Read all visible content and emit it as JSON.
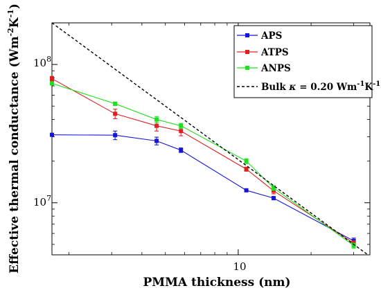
{
  "chart_data": {
    "type": "line",
    "x_scale": "log",
    "y_scale": "log",
    "xlabel": "PMMA thickness (nm)",
    "ylabel_parts": [
      "Effective thermal conductance (Wm",
      "-2",
      "K",
      "-1",
      ")"
    ],
    "xlim": [
      1.7,
      35
    ],
    "ylim": [
      4200000,
      200000000
    ],
    "x_ticks": [
      {
        "value": 10,
        "label": "10"
      }
    ],
    "y_ticks": [
      {
        "value": 10000000,
        "base": "10",
        "exp": "7"
      },
      {
        "value": 100000000,
        "base": "10",
        "exp": "8"
      }
    ],
    "grid": false,
    "legend_position": "top-right",
    "colors": {
      "APS": "#1515d6",
      "ATPS": "#e02020",
      "ANPS": "#1ee01e",
      "bulk": "#000000"
    },
    "series": [
      {
        "name": "APS",
        "marker": "square",
        "x": [
          1.7,
          3.1,
          4.6,
          5.8,
          10.8,
          14,
          30
        ],
        "y": [
          31000000,
          30800000,
          28000000,
          24000000,
          12300000,
          10800000,
          5300000
        ],
        "err": [
          0,
          2200000,
          1800000,
          900000,
          300000,
          300000,
          250000
        ]
      },
      {
        "name": "ATPS",
        "marker": "square",
        "x": [
          1.7,
          3.1,
          4.6,
          5.8,
          10.8,
          14,
          30
        ],
        "y": [
          79000000,
          44000000,
          36000000,
          33000000,
          17500000,
          12200000,
          5100000
        ],
        "err": [
          3000000,
          3500000,
          3000000,
          2500000,
          600000,
          600000,
          200000
        ]
      },
      {
        "name": "ANPS",
        "marker": "square",
        "x": [
          1.7,
          3.1,
          4.6,
          5.8,
          10.8,
          14,
          30
        ],
        "y": [
          73000000,
          52000000,
          40000000,
          36000000,
          20000000,
          12800000,
          4900000
        ],
        "err": [
          2000000,
          1500000,
          2000000,
          1500000,
          800000,
          500000,
          200000
        ]
      },
      {
        "name_parts": [
          "Bulk ",
          "κ",
          " = 0.20 Wm",
          "-1",
          "K",
          "-1"
        ],
        "style": "dashed",
        "x": [
          1.7,
          35
        ],
        "y": [
          200000000,
          4100000
        ]
      }
    ]
  }
}
